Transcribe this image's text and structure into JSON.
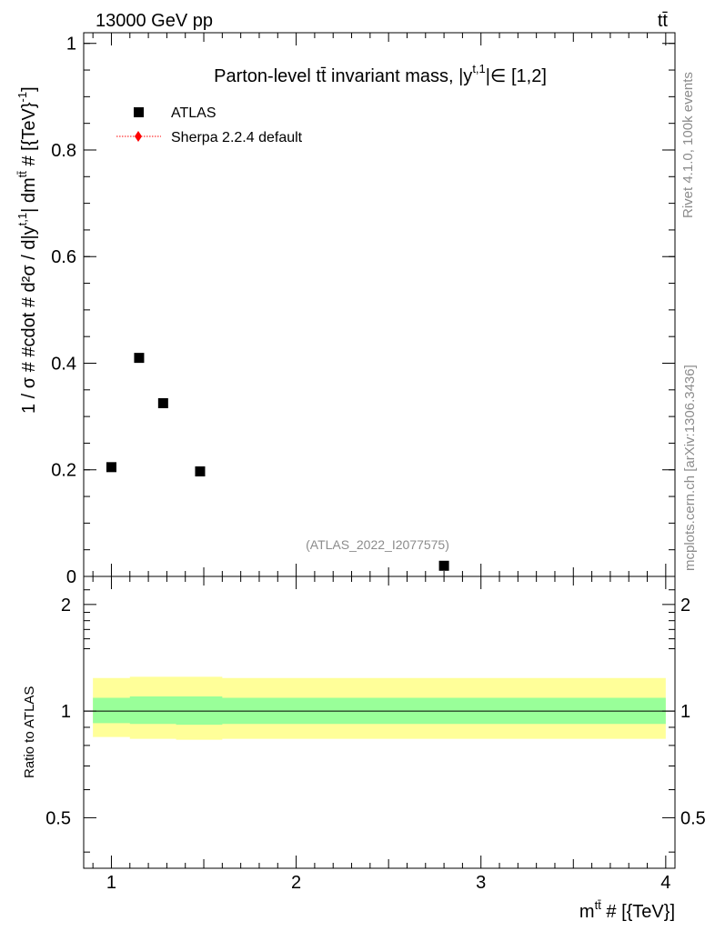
{
  "header": {
    "left": "13000 GeV pp",
    "right": "tt̄"
  },
  "side_labels": {
    "rivet": "Rivet 4.1.0,  100k events",
    "mcplots": "mcplots.cern.ch [arXiv:1306.3436]"
  },
  "watermark": "(ATLAS_2022_I2077575)",
  "chart_data": [
    {
      "type": "scatter",
      "title": "Parton-level tt̄ invariant mass, |y^{t,1}| ∈ [1,2]",
      "title_parts": {
        "main": "Parton-level tt̄ invariant mass, |y",
        "sup": "t,1",
        "tail": "|∈ [1,2]"
      },
      "ylabel": "1 / σ # #cdot # d²σ / d|y^{t,1}| dm^{tt̄} # [{TeV}^{-1}]",
      "ylabel_plain": "1 / σ # #cdot # d²σ / d|y",
      "ylabel_mid": "| dm",
      "ylabel_tail": " # [{TeV}",
      "ylabel_end": "]",
      "ylabel_sup1": "t,1",
      "ylabel_sup2": "tt̄",
      "ylabel_sup3": "-1",
      "xlim": [
        0.85,
        4.05
      ],
      "ylim": [
        0,
        1.02
      ],
      "yticks": [
        0,
        0.2,
        0.4,
        0.6,
        0.8,
        1
      ],
      "ytick_labels": [
        "0",
        "0.2",
        "0.4",
        "0.6",
        "0.8",
        "1"
      ],
      "legend": {
        "placement": "top-left",
        "entries": [
          {
            "name": "ATLAS",
            "marker": "square",
            "color": "#000000"
          },
          {
            "name": "Sherpa 2.2.4 default",
            "marker": "diamond-dotted-line",
            "color": "#ff0000"
          }
        ]
      },
      "series": [
        {
          "name": "ATLAS",
          "x": [
            1.0,
            1.15,
            1.28,
            1.48,
            2.8
          ],
          "y": [
            0.205,
            0.41,
            0.325,
            0.197,
            0.02
          ]
        }
      ]
    },
    {
      "type": "area",
      "ylabel": "Ratio to ATLAS",
      "xlabel": "m^{tt̄} # [{TeV}]",
      "xlabel_main": "m",
      "xlabel_sup": "tt̄",
      "xlabel_tail": " # [{TeV}]",
      "xlim": [
        0.85,
        4.05
      ],
      "ylim": [
        0.36,
        2.4
      ],
      "log_y": true,
      "xticks": [
        1,
        2,
        3,
        4
      ],
      "xtick_labels": [
        "1",
        "2",
        "3",
        "4"
      ],
      "yticks": [
        0.5,
        1,
        2
      ],
      "ytick_labels": [
        "0.5",
        "1",
        "2"
      ],
      "reference_line": 1,
      "bands": {
        "edges": [
          0.9,
          1.1,
          1.35,
          1.6,
          4.0
        ],
        "outer": {
          "color": "#ffff99",
          "lo": [
            0.845,
            0.835,
            0.83,
            0.835,
            0.845
          ],
          "hi": [
            1.24,
            1.25,
            1.25,
            1.24,
            1.24
          ]
        },
        "inner": {
          "color": "#99ff99",
          "lo": [
            0.925,
            0.92,
            0.915,
            0.92,
            0.925
          ],
          "hi": [
            1.09,
            1.1,
            1.1,
            1.09,
            1.09
          ]
        }
      }
    }
  ]
}
